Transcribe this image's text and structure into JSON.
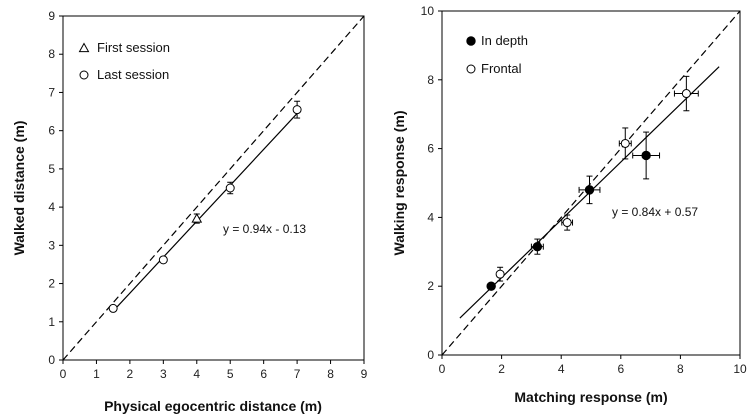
{
  "chart_data": [
    {
      "type": "scatter",
      "xlabel": "Physical egocentric distance (m)",
      "ylabel": "Walked distance (m)",
      "xlim": [
        0,
        9
      ],
      "ylim": [
        0,
        9
      ],
      "xticks": [
        0,
        1,
        2,
        3,
        4,
        5,
        6,
        7,
        8,
        9
      ],
      "yticks": [
        0,
        1,
        2,
        3,
        4,
        5,
        6,
        7,
        8,
        9
      ],
      "grid": false,
      "legend_position": "top-left",
      "identity_line": true,
      "fit": {
        "slope": 0.94,
        "intercept": -0.13,
        "x_range": [
          1.5,
          7.0
        ],
        "label": "y = 0.94x - 0.13"
      },
      "series": [
        {
          "name": "First session",
          "marker": "triangle-open",
          "points": [
            {
              "x": 4.0,
              "y": 3.7,
              "yerr": 0.12
            }
          ]
        },
        {
          "name": "Last session",
          "marker": "circle-open",
          "points": [
            {
              "x": 1.5,
              "y": 1.35,
              "yerr": 0.05
            },
            {
              "x": 3.0,
              "y": 2.62,
              "yerr": 0.06
            },
            {
              "x": 5.0,
              "y": 4.5,
              "yerr": 0.15
            },
            {
              "x": 7.0,
              "y": 6.55,
              "yerr": 0.22
            }
          ]
        }
      ]
    },
    {
      "type": "scatter",
      "xlabel": "Matching response (m)",
      "ylabel": "Walking response (m)",
      "xlim": [
        0,
        10
      ],
      "ylim": [
        0,
        10
      ],
      "xticks": [
        0,
        2,
        4,
        6,
        8,
        10
      ],
      "yticks": [
        0,
        2,
        4,
        6,
        8,
        10
      ],
      "grid": false,
      "legend_position": "top-left",
      "identity_line": true,
      "fit": {
        "slope": 0.84,
        "intercept": 0.57,
        "x_range": [
          0.6,
          9.3
        ],
        "label": "y = 0.84x + 0.57"
      },
      "series": [
        {
          "name": "In depth",
          "marker": "circle-filled",
          "points": [
            {
              "x": 1.65,
              "y": 2.0,
              "xerr": 0.1,
              "yerr": 0.08
            },
            {
              "x": 3.2,
              "y": 3.15,
              "xerr": 0.2,
              "yerr": 0.22
            },
            {
              "x": 4.95,
              "y": 4.8,
              "xerr": 0.35,
              "yerr": 0.4
            },
            {
              "x": 6.85,
              "y": 5.8,
              "xerr": 0.45,
              "yerr": 0.68
            }
          ]
        },
        {
          "name": "Frontal",
          "marker": "circle-open",
          "points": [
            {
              "x": 1.95,
              "y": 2.35,
              "xerr": 0.1,
              "yerr": 0.2
            },
            {
              "x": 4.2,
              "y": 3.85,
              "xerr": 0.18,
              "yerr": 0.22
            },
            {
              "x": 6.15,
              "y": 6.15,
              "xerr": 0.2,
              "yerr": 0.45
            },
            {
              "x": 8.2,
              "y": 7.6,
              "xerr": 0.4,
              "yerr": 0.5
            }
          ]
        }
      ]
    }
  ]
}
